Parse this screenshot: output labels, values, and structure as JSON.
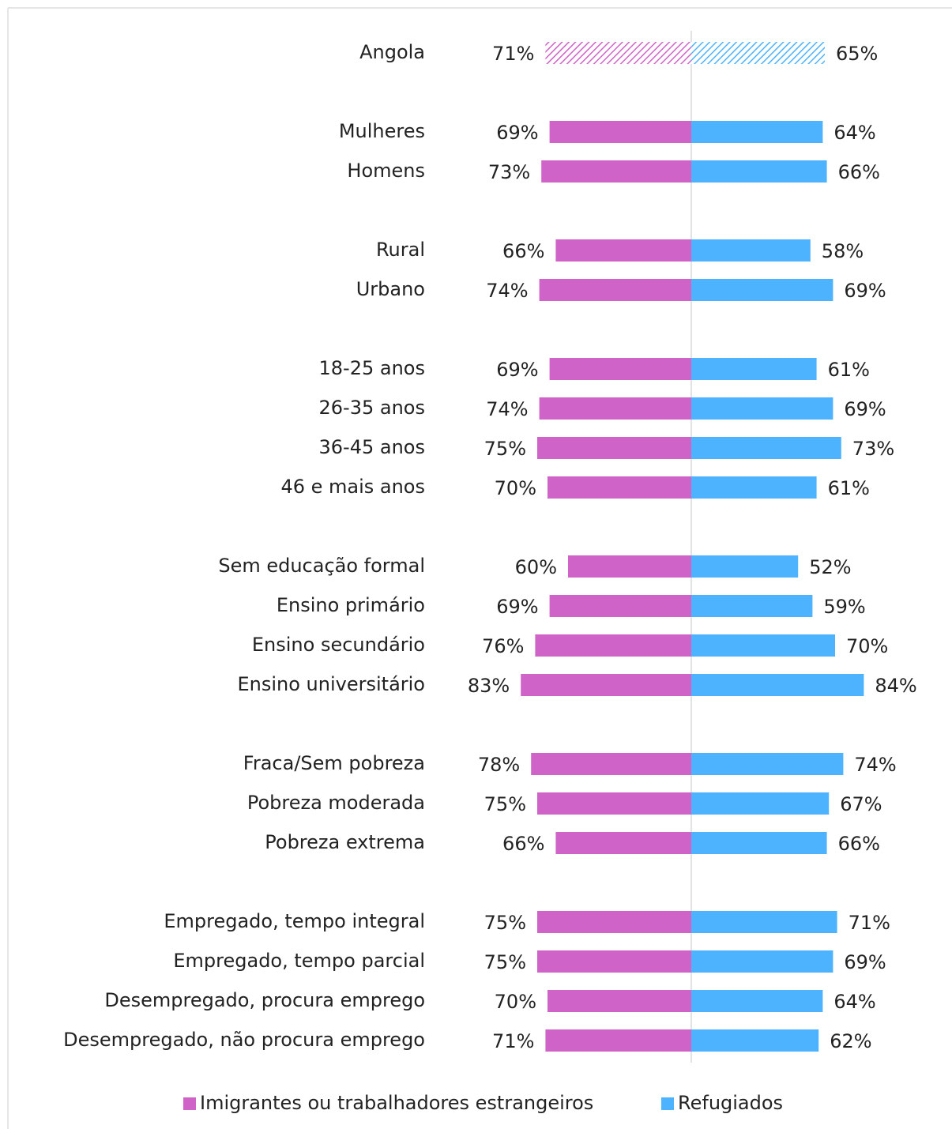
{
  "chart_data": {
    "type": "butterfly",
    "categories": [
      "Angola",
      null,
      "Mulheres",
      "Homens",
      null,
      "Rural",
      "Urbano",
      null,
      "18-25 anos",
      "26-35 anos",
      "36-45 anos",
      "46 e mais anos",
      null,
      "Sem educação formal",
      "Ensino primário",
      "Ensino secundário",
      "Ensino universitário",
      null,
      "Fraca/Sem pobreza",
      "Pobreza moderada",
      "Pobreza extrema",
      null,
      "Empregado, tempo integral",
      "Empregado, tempo parcial",
      "Desempregado, procura emprego",
      "Desempregado, não procura emprego"
    ],
    "series": [
      {
        "name": "Imigrantes ou trabalhadores estrangeiros",
        "color": "#d063c8",
        "values": [
          71,
          null,
          69,
          73,
          null,
          66,
          74,
          null,
          69,
          74,
          75,
          70,
          null,
          60,
          69,
          76,
          83,
          null,
          78,
          75,
          66,
          null,
          75,
          75,
          70,
          71
        ],
        "value_labels": [
          "71%",
          null,
          "69%",
          "73%",
          null,
          "66%",
          "74%",
          null,
          "69%",
          "74%",
          "75%",
          "70%",
          null,
          "60%",
          "69%",
          "76%",
          "83%",
          null,
          "78%",
          "75%",
          "66%",
          null,
          "75%",
          "75%",
          "70%",
          "71%"
        ]
      },
      {
        "name": "Refugiados",
        "color": "#4db3ff",
        "values": [
          65,
          null,
          64,
          66,
          null,
          58,
          69,
          null,
          61,
          69,
          73,
          61,
          null,
          52,
          59,
          70,
          84,
          null,
          74,
          67,
          66,
          null,
          71,
          69,
          64,
          62
        ],
        "value_labels": [
          "65%",
          null,
          "64%",
          "66%",
          null,
          "58%",
          "69%",
          null,
          "61%",
          "69%",
          "73%",
          "61%",
          null,
          "52%",
          "59%",
          "70%",
          "84%",
          null,
          "74%",
          "67%",
          "66%",
          null,
          "71%",
          "69%",
          "64%",
          "62%"
        ]
      }
    ],
    "xlim": [
      0,
      100
    ],
    "hatched": [
      0
    ],
    "legend": "bottom"
  }
}
